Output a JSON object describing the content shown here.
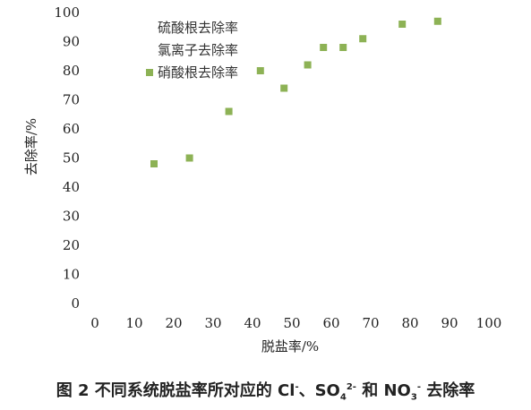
{
  "chart_data": {
    "type": "scatter",
    "xlabel": "脱盐率/%",
    "ylabel": "去除率/%",
    "xlim": [
      0,
      100
    ],
    "ylim": [
      0,
      100
    ],
    "xticks": [
      "0",
      "10",
      "20",
      "30",
      "40",
      "50",
      "60",
      "70",
      "80",
      "90",
      "100"
    ],
    "yticks": [
      "0",
      "10",
      "20",
      "30",
      "40",
      "50",
      "60",
      "70",
      "80",
      "90",
      "100"
    ],
    "legend": [
      "硫酸根去除率",
      "氯离子去除率",
      "硝酸根去除率"
    ],
    "legend_placement": "top-left",
    "marker_color": "#8db255",
    "series": [
      {
        "name": "硝酸根去除率",
        "x": [
          15,
          24,
          34,
          42,
          48,
          54,
          58,
          63,
          68,
          78,
          87
        ],
        "y": [
          48,
          50,
          66,
          80,
          74,
          82,
          88,
          88,
          91,
          96,
          97
        ]
      }
    ]
  },
  "caption": {
    "prefix": "图 2 不同系统脱盐率所对应的 Cl",
    "cl_sup": "-",
    "mid1": "、SO",
    "so4_sub": "4",
    "so4_sup": "2-",
    "mid2": " 和 NO",
    "no3_sub": "3",
    "no3_sup": "-",
    "suffix": " 去除率"
  }
}
